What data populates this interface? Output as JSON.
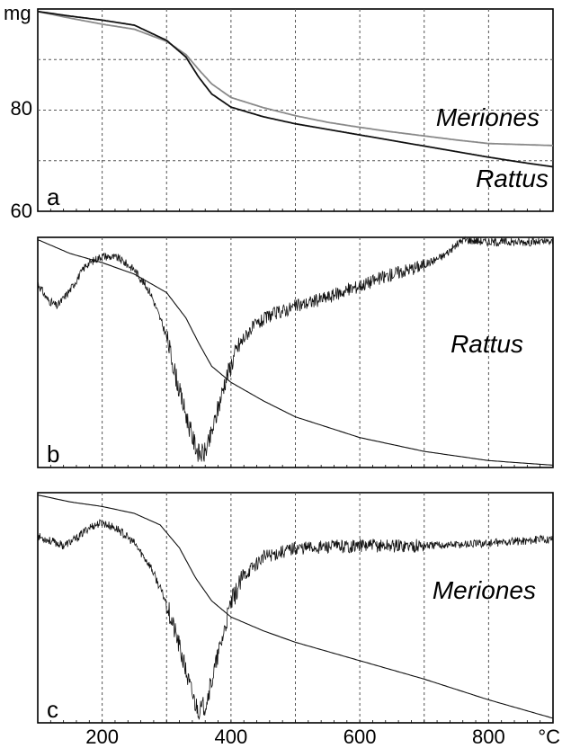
{
  "chart_data": [
    {
      "panel": "a",
      "type": "line",
      "y_unit": "mg",
      "yticks": [
        "80",
        "60"
      ],
      "ylim": [
        60,
        100
      ],
      "xlim": [
        100,
        900
      ],
      "grid": true,
      "series": [
        {
          "name": "Meriones",
          "color": "#8a8a8a",
          "x": [
            100,
            150,
            200,
            250,
            300,
            330,
            350,
            370,
            400,
            450,
            500,
            550,
            600,
            650,
            700,
            750,
            800,
            850,
            900
          ],
          "y": [
            99.5,
            98.2,
            97,
            96,
            93.6,
            91,
            88,
            85.2,
            82.5,
            80.5,
            78.9,
            77.6,
            76.6,
            75.7,
            74.9,
            74.1,
            73.4,
            73.2,
            73.0
          ]
        },
        {
          "name": "Rattus",
          "color": "#111111",
          "x": [
            100,
            150,
            200,
            250,
            300,
            330,
            350,
            370,
            400,
            450,
            500,
            550,
            600,
            650,
            700,
            750,
            800,
            850,
            900
          ],
          "y": [
            99.5,
            98.6,
            97.8,
            96.8,
            93.8,
            90.5,
            86.5,
            83.2,
            80.6,
            78.7,
            77.3,
            76.2,
            75.1,
            74.0,
            72.9,
            71.8,
            70.7,
            69.7,
            68.8
          ]
        }
      ]
    },
    {
      "panel": "b",
      "type": "line",
      "xlim": [
        100,
        900
      ],
      "grid": true,
      "series_label": "Rattus",
      "curves": [
        {
          "kind": "dta",
          "noisy": true,
          "x": [
            100,
            115,
            130,
            150,
            175,
            200,
            225,
            250,
            275,
            300,
            320,
            340,
            350,
            358,
            365,
            375,
            390,
            410,
            430,
            460,
            500,
            550,
            600,
            650,
            700,
            730,
            760,
            800,
            850,
            900
          ],
          "y": [
            0.8,
            0.73,
            0.7,
            0.77,
            0.88,
            0.92,
            0.91,
            0.86,
            0.76,
            0.57,
            0.33,
            0.13,
            0.06,
            0.06,
            0.1,
            0.2,
            0.37,
            0.52,
            0.6,
            0.66,
            0.7,
            0.74,
            0.79,
            0.84,
            0.88,
            0.92,
            0.99,
            0.98,
            0.98,
            0.98
          ]
        },
        {
          "kind": "tg",
          "noisy": false,
          "x": [
            100,
            150,
            200,
            250,
            300,
            330,
            350,
            370,
            400,
            450,
            500,
            600,
            700,
            800,
            900
          ],
          "y": [
            0.99,
            0.93,
            0.89,
            0.84,
            0.76,
            0.65,
            0.54,
            0.44,
            0.37,
            0.29,
            0.22,
            0.13,
            0.07,
            0.03,
            0.01
          ]
        }
      ]
    },
    {
      "panel": "c",
      "type": "line",
      "xlim": [
        100,
        900
      ],
      "xlabel": "°C",
      "xticks": [
        "200",
        "400",
        "600",
        "800"
      ],
      "grid": true,
      "series_label": "Meriones",
      "curves": [
        {
          "kind": "dta",
          "noisy": true,
          "x": [
            100,
            120,
            140,
            160,
            180,
            200,
            225,
            250,
            275,
            300,
            320,
            335,
            345,
            352,
            360,
            370,
            385,
            400,
            420,
            450,
            500,
            600,
            700,
            800,
            900
          ],
          "y": [
            0.81,
            0.79,
            0.77,
            0.8,
            0.85,
            0.87,
            0.84,
            0.78,
            0.68,
            0.52,
            0.33,
            0.17,
            0.08,
            0.05,
            0.08,
            0.18,
            0.35,
            0.52,
            0.64,
            0.72,
            0.76,
            0.77,
            0.77,
            0.78,
            0.8
          ]
        },
        {
          "kind": "tg",
          "noisy": false,
          "x": [
            100,
            150,
            200,
            250,
            290,
            320,
            345,
            370,
            400,
            450,
            500,
            600,
            700,
            800,
            900
          ],
          "y": [
            0.99,
            0.96,
            0.94,
            0.91,
            0.86,
            0.76,
            0.63,
            0.53,
            0.46,
            0.4,
            0.35,
            0.27,
            0.19,
            0.1,
            0.02
          ]
        }
      ]
    }
  ]
}
